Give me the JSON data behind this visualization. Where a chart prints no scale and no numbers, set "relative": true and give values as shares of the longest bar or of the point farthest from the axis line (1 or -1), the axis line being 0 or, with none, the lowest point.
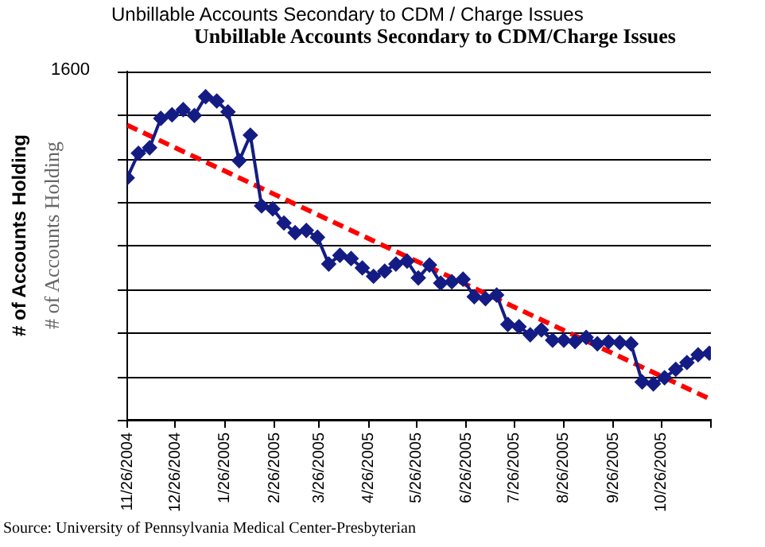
{
  "chart_data": {
    "type": "line",
    "title": "Unbillable Accounts Secondary to CDM / Charge Issues",
    "subtitle": "Unbillable Accounts Secondary to CDM/Charge Issues",
    "ylabel": "# of Accounts Holding",
    "relative": true,
    "annotations": [
      "1600",
      "# of Accounts Holding",
      "Source: University of Pennsylvania Medical Center-Presbyterian"
    ],
    "x": [
      "2004-11-26",
      "2004-12-03",
      "2004-12-10",
      "2004-12-17",
      "2004-12-24",
      "2004-12-31",
      "2005-01-07",
      "2005-01-14",
      "2005-01-21",
      "2005-01-28",
      "2005-02-04",
      "2005-02-11",
      "2005-02-18",
      "2005-02-25",
      "2005-03-04",
      "2005-03-11",
      "2005-03-18",
      "2005-03-25",
      "2005-04-01",
      "2005-04-08",
      "2005-04-15",
      "2005-04-22",
      "2005-04-29",
      "2005-05-06",
      "2005-05-13",
      "2005-05-20",
      "2005-05-27",
      "2005-06-03",
      "2005-06-10",
      "2005-06-17",
      "2005-06-24",
      "2005-07-01",
      "2005-07-08",
      "2005-07-15",
      "2005-07-22",
      "2005-07-29",
      "2005-08-05",
      "2005-08-12",
      "2005-08-19",
      "2005-08-26",
      "2005-09-02",
      "2005-09-09",
      "2005-09-16",
      "2005-09-23",
      "2005-09-30",
      "2005-10-07",
      "2005-10-14",
      "2005-10-21",
      "2005-10-28",
      "2005-11-04",
      "2005-11-11",
      "2005-11-18",
      "2005-11-25"
    ],
    "series": [
      {
        "type": "line",
        "color": "#141c84",
        "marker": "diamond",
        "values": [
          0.749,
          0.825,
          0.842,
          0.933,
          0.944,
          0.96,
          0.942,
          1,
          0.987,
          0.953,
          0.802,
          0.881,
          0.662,
          0.653,
          0.609,
          0.579,
          0.586,
          0.565,
          0.482,
          0.509,
          0.499,
          0.47,
          0.444,
          0.46,
          0.482,
          0.491,
          0.439,
          0.479,
          0.423,
          0.427,
          0.435,
          0.381,
          0.375,
          0.386,
          0.295,
          0.288,
          0.263,
          0.278,
          0.246,
          0.246,
          0.242,
          0.255,
          0.235,
          0.241,
          0.239,
          0.235,
          0.117,
          0.111,
          0.13,
          0.156,
          0.177,
          0.201,
          0.206
        ]
      },
      {
        "type": "line",
        "color": "#ff0000",
        "marker": "none",
        "line_style": "dashed",
        "x": [
          "2004-11-26",
          "2005-11-25"
        ],
        "values": [
          0.912,
          0.065
        ]
      }
    ],
    "xlim": [
      "2004-11-26",
      "2005-11-26"
    ],
    "xticks": [
      {
        "value": "2004-11-26",
        "label": "11/26/2004"
      },
      {
        "value": "2004-12-26",
        "label": "12/26/2004"
      },
      {
        "value": "2005-01-26",
        "label": "1/26/2005"
      },
      {
        "value": "2005-02-26",
        "label": "2/26/2005"
      },
      {
        "value": "2005-03-26",
        "label": "3/26/2005"
      },
      {
        "value": "2005-04-26",
        "label": "4/26/2005"
      },
      {
        "value": "2005-05-26",
        "label": "5/26/2005"
      },
      {
        "value": "2005-06-26",
        "label": "6/26/2005"
      },
      {
        "value": "2005-07-26",
        "label": "7/26/2005"
      },
      {
        "value": "2005-08-26",
        "label": "8/26/2005"
      },
      {
        "value": "2005-09-26",
        "label": "9/26/2005"
      },
      {
        "value": "2005-10-26",
        "label": "10/26/2005"
      },
      {
        "value": "2005-11-26",
        "label": null
      }
    ],
    "grid": "y",
    "legend": false
  }
}
